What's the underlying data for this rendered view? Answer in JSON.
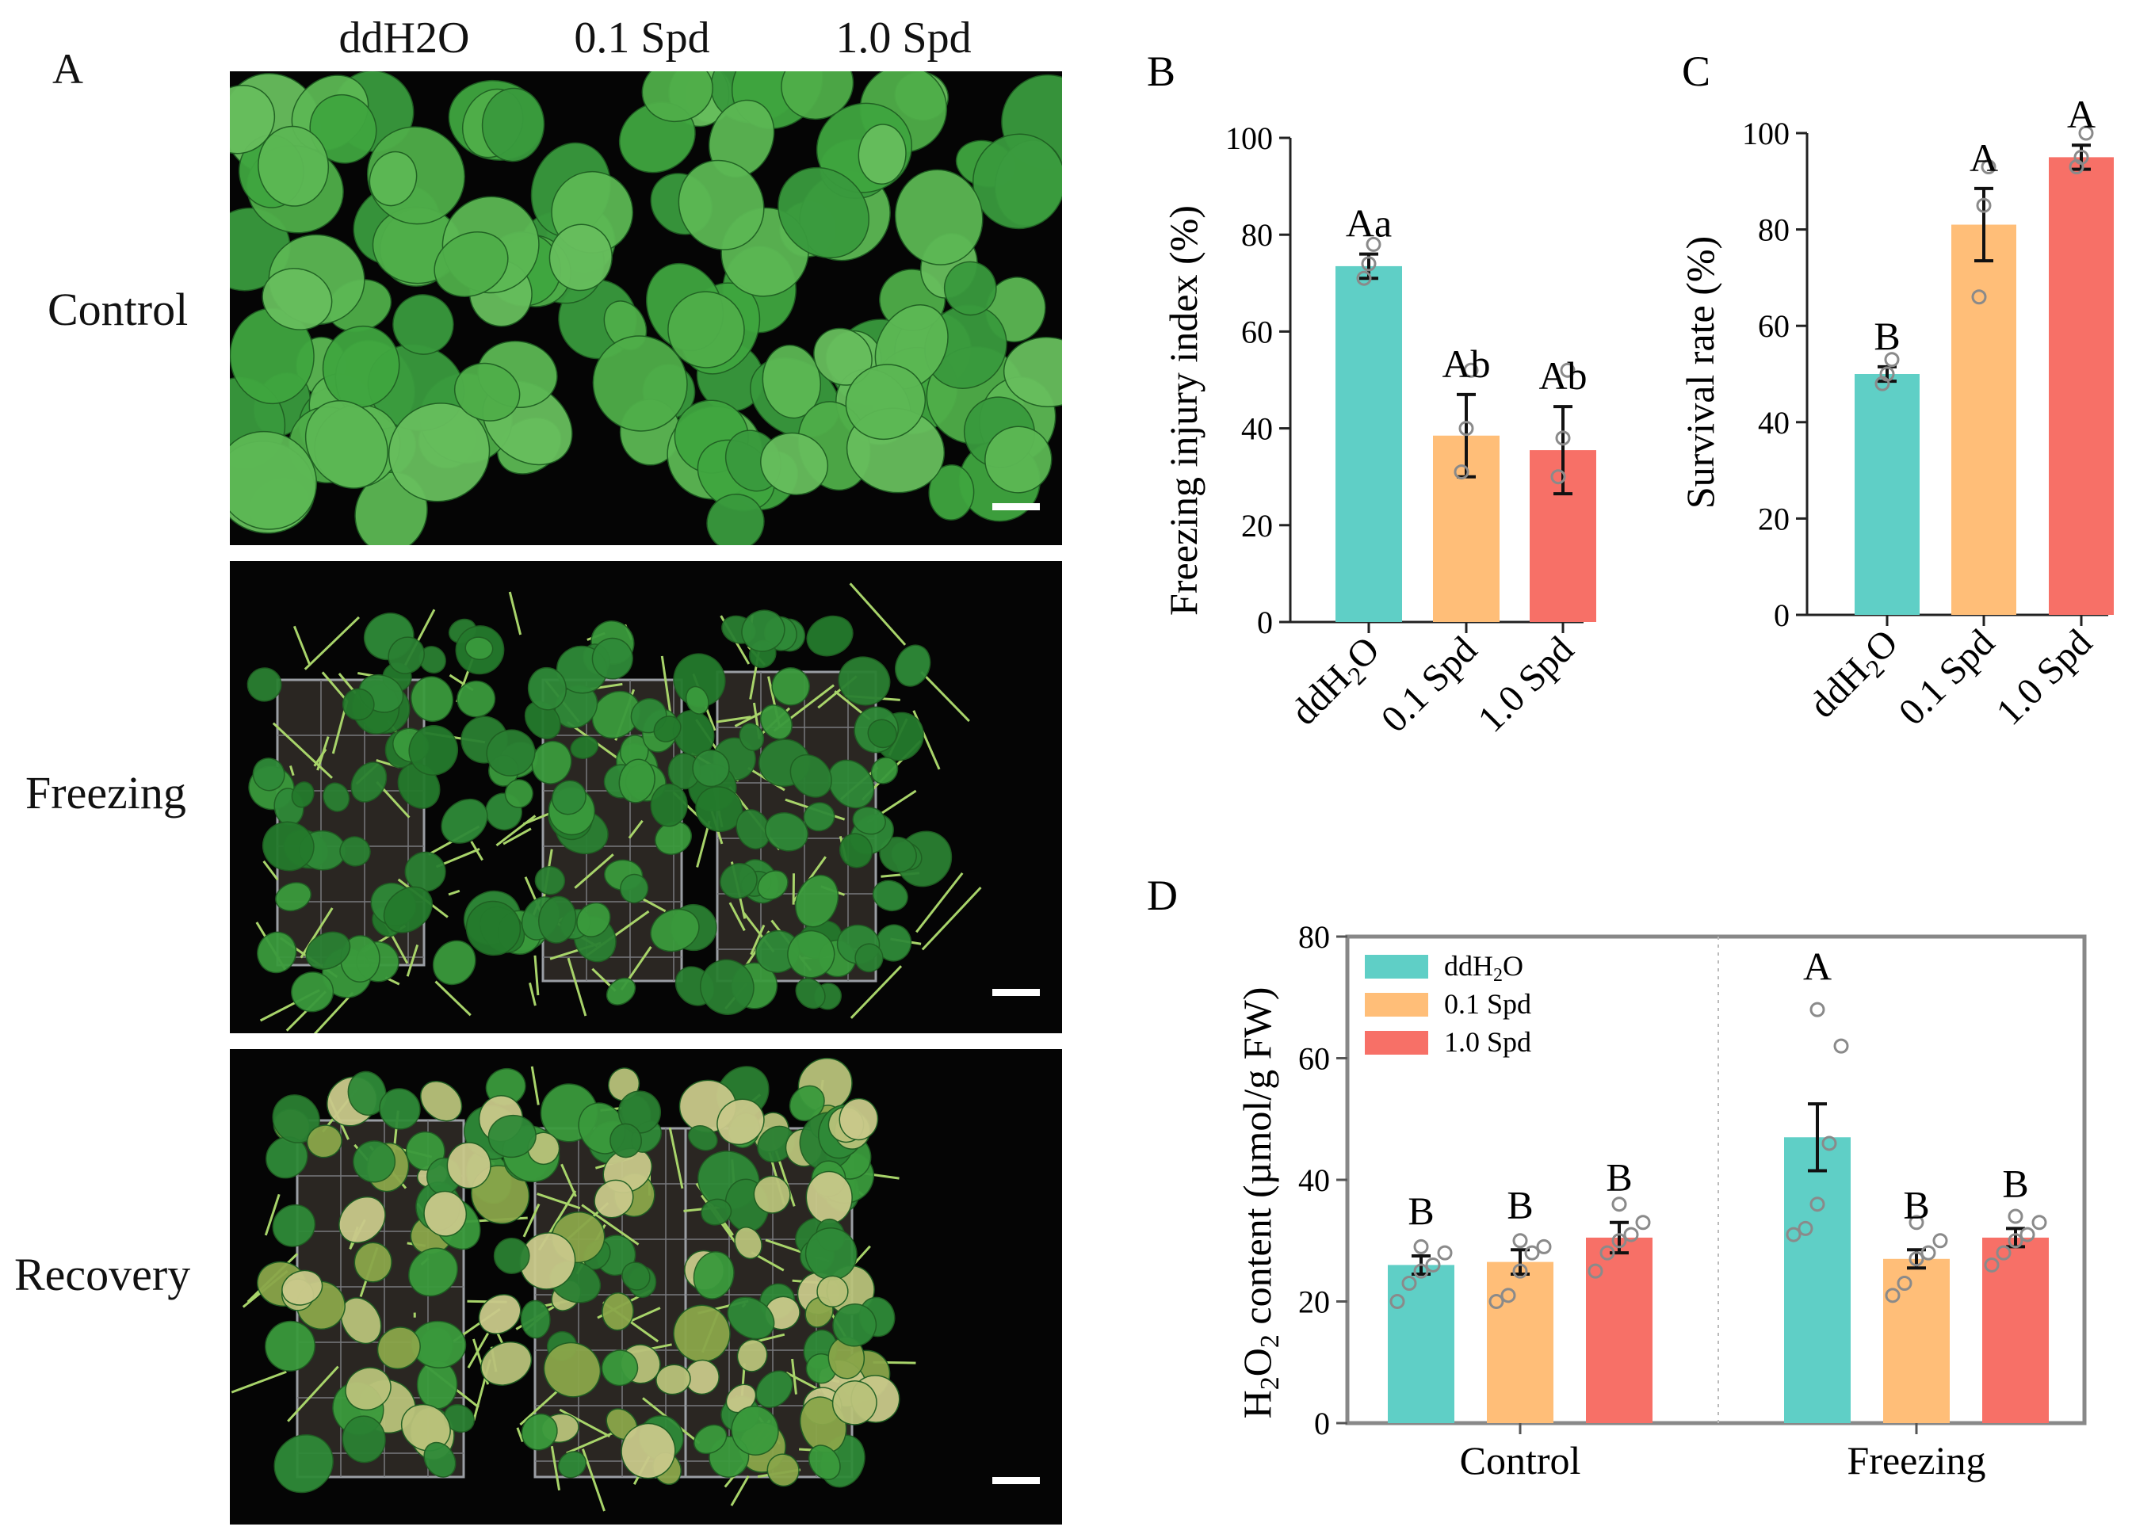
{
  "panelA": {
    "letter": "A",
    "column_labels": [
      "ddH2O",
      "0.1 Spd",
      "1.0 Spd"
    ],
    "row_labels": [
      "Control",
      "Freezing",
      "Recovery"
    ]
  },
  "colors": {
    "ddH2O": "#5fcfc6",
    "spd01": "#ffbe78",
    "spd10": "#f77067",
    "leaf": "#3fa63f",
    "leaf_dark": "#2a8032",
    "leaf_yellow": "#b9c27a"
  },
  "chart_data": [
    {
      "id": "B",
      "type": "bar",
      "panel_letter": "B",
      "categories": [
        "ddH2O",
        "0.1 Spd",
        "1.0 Spd"
      ],
      "values": [
        73.5,
        38.5,
        35.5
      ],
      "errors": [
        2.5,
        8.5,
        9.0
      ],
      "points": [
        [
          71,
          74,
          78
        ],
        [
          31,
          40,
          52
        ],
        [
          30,
          38,
          52
        ]
      ],
      "significance": [
        "Aa",
        "Ab",
        "Ab"
      ],
      "ylabel": "Freezing injury index (%)",
      "xlabel": "",
      "ylim": [
        0,
        100
      ],
      "yticks": [
        0,
        20,
        40,
        60,
        80,
        100
      ]
    },
    {
      "id": "C",
      "type": "bar",
      "panel_letter": "C",
      "categories": [
        "ddH2O",
        "0.1 Spd",
        "1.0 Spd"
      ],
      "values": [
        50,
        81,
        95
      ],
      "errors": [
        1.5,
        7.5,
        2.5
      ],
      "points": [
        [
          48,
          50,
          53
        ],
        [
          66,
          85,
          93
        ],
        [
          93,
          95,
          100
        ]
      ],
      "significance": [
        "B",
        "A",
        "A"
      ],
      "ylabel": "Survival rate (%)",
      "xlabel": "",
      "ylim": [
        0,
        100
      ],
      "yticks": [
        0,
        20,
        40,
        60,
        80,
        100
      ]
    },
    {
      "id": "D",
      "type": "bar",
      "panel_letter": "D",
      "categories": [
        "Control",
        "Freezing"
      ],
      "series": [
        {
          "name": "ddH2O",
          "values": [
            26,
            47
          ],
          "errors": [
            1.5,
            5.5
          ],
          "points": [
            [
              20,
              23,
              25,
              26,
              28,
              29
            ],
            [
              31,
              32,
              36,
              46,
              62,
              68
            ]
          ]
        },
        {
          "name": "0.1 Spd",
          "values": [
            26.5,
            27
          ],
          "errors": [
            2,
            1.5
          ],
          "points": [
            [
              20,
              21,
              25,
              28,
              29,
              30
            ],
            [
              21,
              23,
              27,
              28,
              30,
              33
            ]
          ]
        },
        {
          "name": "1.0 Spd",
          "values": [
            30.5,
            30.5
          ],
          "errors": [
            2.5,
            1.5
          ],
          "points": [
            [
              25,
              28,
              30,
              31,
              33,
              36
            ],
            [
              26,
              28,
              30,
              31,
              33,
              34
            ]
          ]
        }
      ],
      "significance": [
        [
          "B",
          "B",
          "B"
        ],
        [
          "A",
          "B",
          "B"
        ]
      ],
      "ylabel": "H2O2 content (µmol/g FW)",
      "xlabel": "",
      "ylim": [
        0,
        80
      ],
      "yticks": [
        0,
        20,
        40,
        60,
        80
      ],
      "legend_position": "top-left"
    }
  ]
}
